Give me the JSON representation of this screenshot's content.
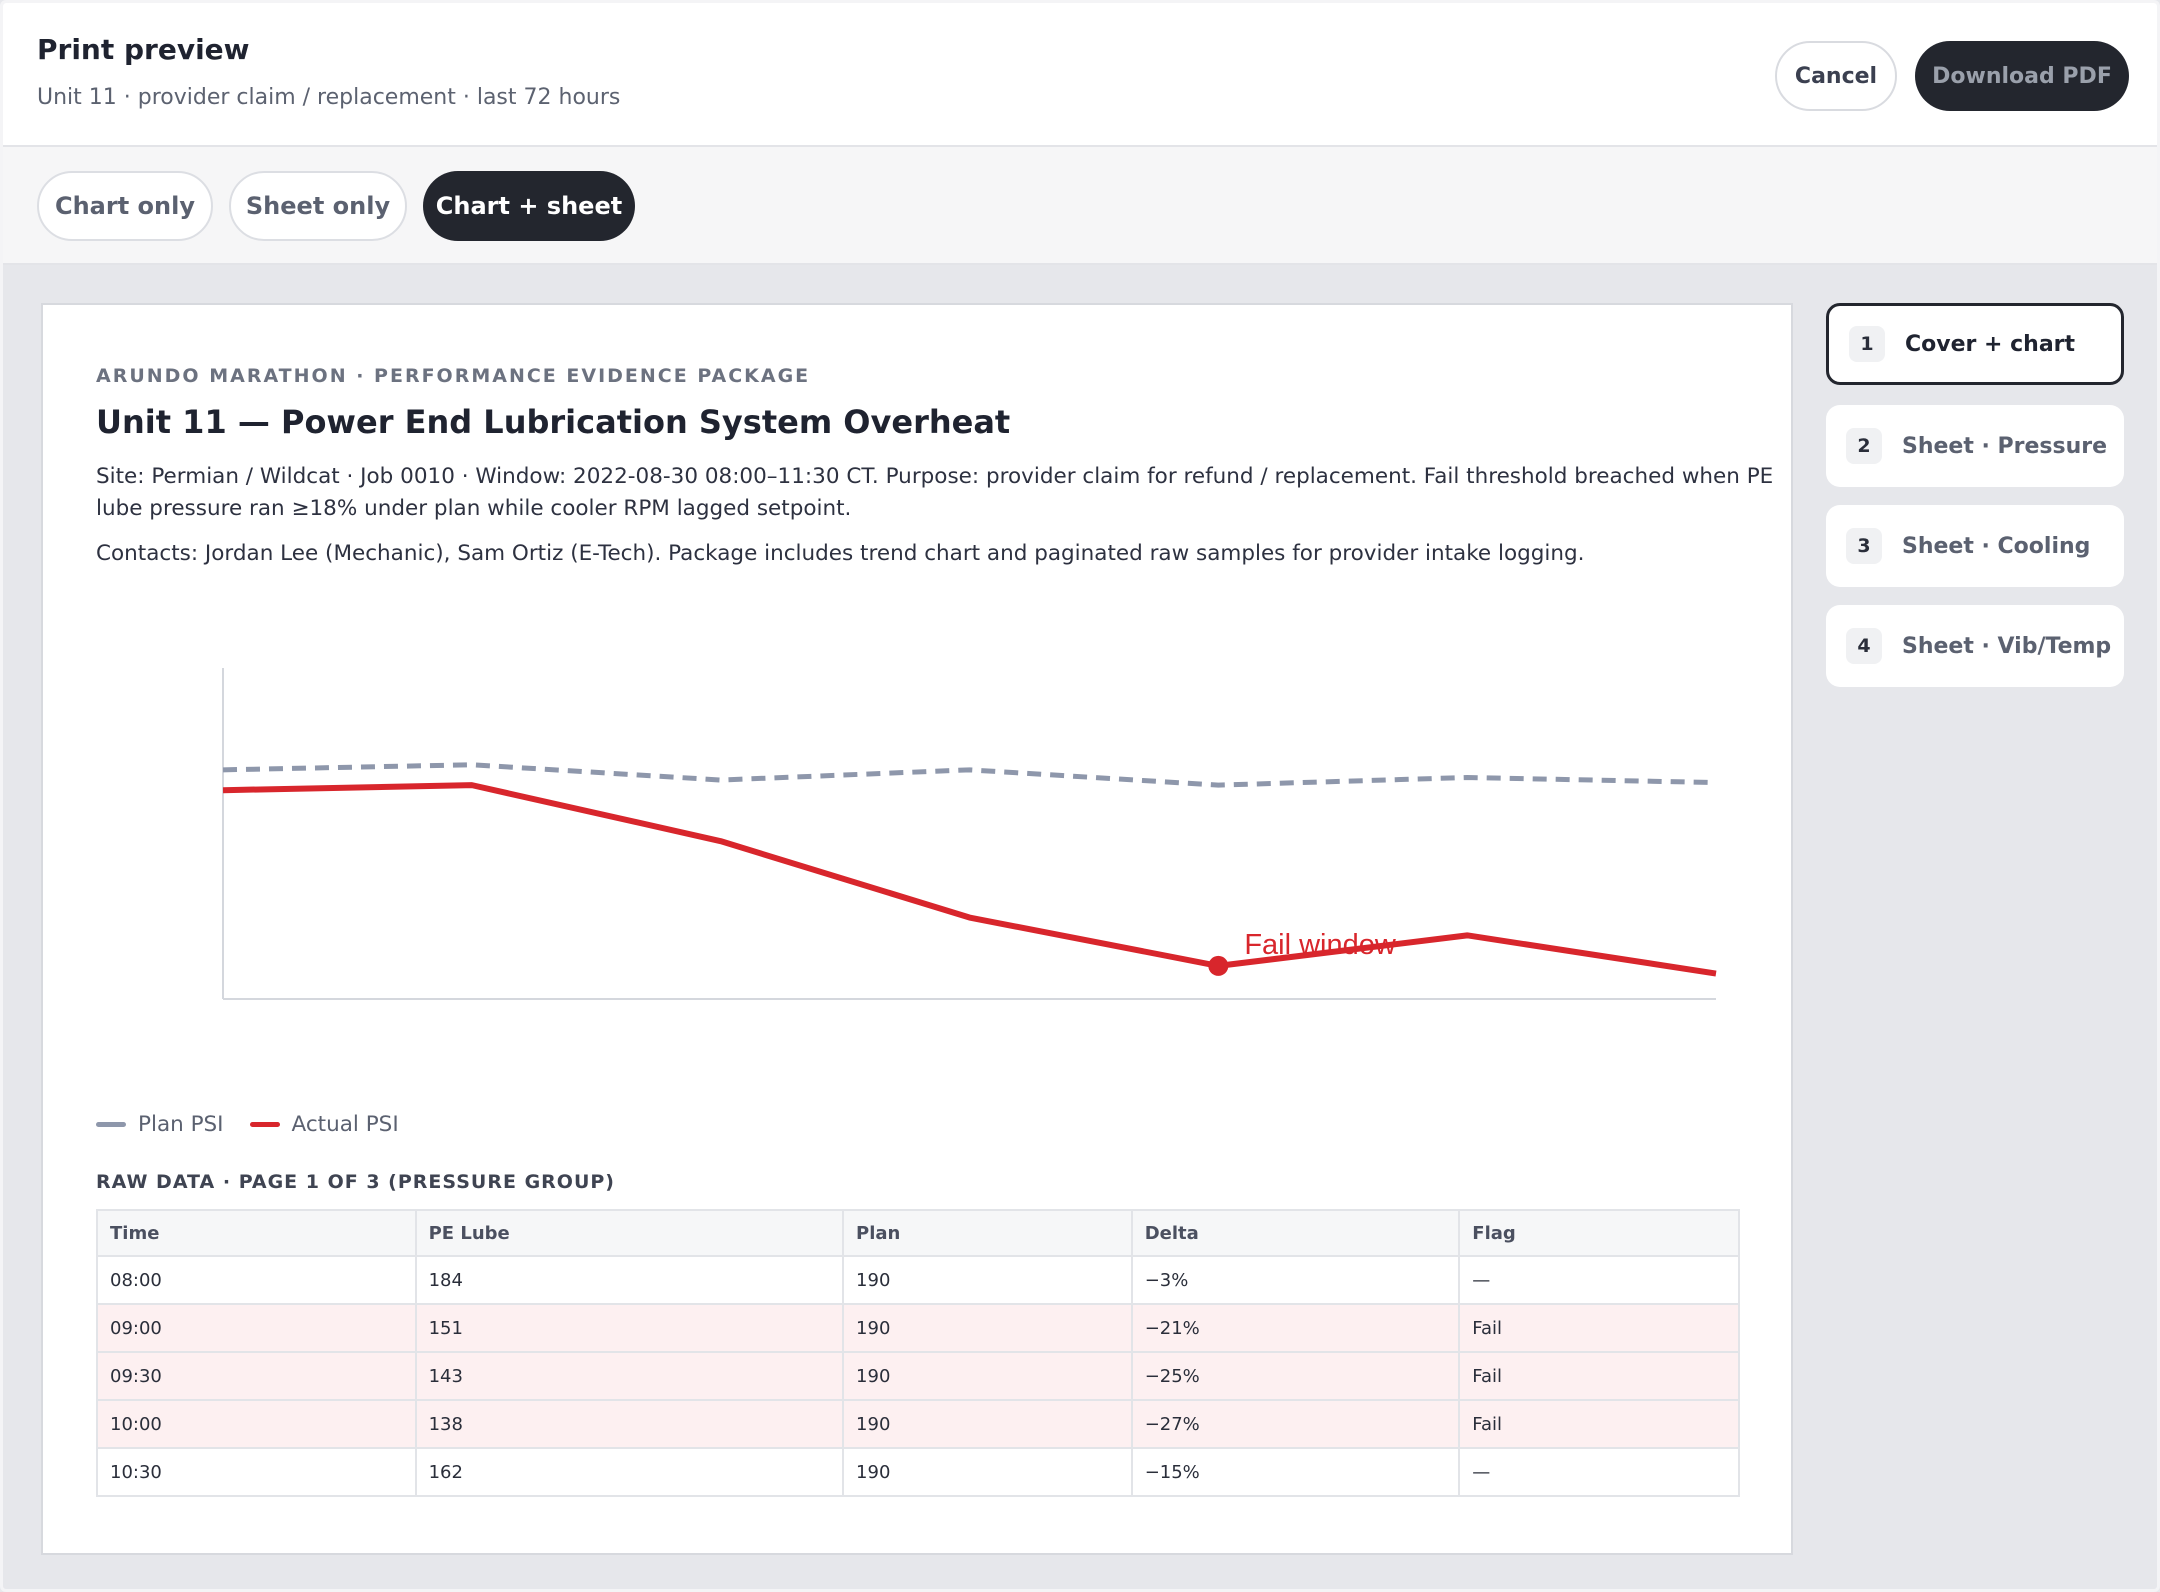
{
  "header": {
    "title": "Print preview",
    "subtitle": "Unit 11 · provider claim / replacement · last 72 hours",
    "cancel_label": "Cancel",
    "download_label": "Download PDF"
  },
  "tabs": [
    {
      "label": "Chart only",
      "active": false
    },
    {
      "label": "Sheet only",
      "active": false
    },
    {
      "label": "Chart + sheet",
      "active": true
    }
  ],
  "document": {
    "eyebrow": "ARUNDO MARATHON · PERFORMANCE EVIDENCE PACKAGE",
    "title": "Unit 11 — Power End Lubrication System Overheat",
    "description": "Site: Permian / Wildcat · Job 0010 · Window: 2022-08-30 08:00–11:30 CT. Purpose: provider claim for refund / replacement. Fail threshold breached when PE lube pressure ran ≥18% under plan while cooler RPM lagged setpoint.",
    "contacts": "Contacts: Jordan Lee (Mechanic), Sam Ortiz (E-Tech). Package includes trend chart and paginated raw samples for provider intake logging.",
    "raw_title": "RAW DATA · PAGE 1 OF 3 (PRESSURE GROUP)"
  },
  "chart_data": {
    "type": "line",
    "title": "",
    "xlabel": "",
    "ylabel": "",
    "ylim": [
      100,
      230
    ],
    "x": [
      0,
      1,
      2,
      3,
      4,
      5,
      6
    ],
    "series": [
      {
        "name": "Plan PSI",
        "color": "#8e97ab",
        "style": "dashed",
        "values": [
          190,
          192,
          186,
          190,
          184,
          187,
          185
        ]
      },
      {
        "name": "Actual PSI",
        "color": "#d8262c",
        "style": "solid",
        "values": [
          182,
          184,
          162,
          132,
          113,
          125,
          110
        ]
      }
    ],
    "annotations": [
      {
        "label": "Fail window",
        "x": 4,
        "series": "Actual PSI"
      }
    ],
    "grid": false,
    "legend": "bottom-left"
  },
  "table": {
    "columns": [
      "Time",
      "PE Lube",
      "Plan",
      "Delta",
      "Flag"
    ],
    "rows": [
      {
        "cells": [
          "08:00",
          "184",
          "190",
          "−3%",
          "—"
        ],
        "fail": false
      },
      {
        "cells": [
          "09:00",
          "151",
          "190",
          "−21%",
          "Fail"
        ],
        "fail": true
      },
      {
        "cells": [
          "09:30",
          "143",
          "190",
          "−25%",
          "Fail"
        ],
        "fail": true
      },
      {
        "cells": [
          "10:00",
          "138",
          "190",
          "−27%",
          "Fail"
        ],
        "fail": true
      },
      {
        "cells": [
          "10:30",
          "162",
          "190",
          "−15%",
          "—"
        ],
        "fail": false
      }
    ]
  },
  "sidebar": {
    "items": [
      {
        "num": "1",
        "label": "Cover + chart",
        "active": true
      },
      {
        "num": "2",
        "label": "Sheet · Pressure",
        "active": false
      },
      {
        "num": "3",
        "label": "Sheet · Cooling",
        "active": false
      },
      {
        "num": "4",
        "label": "Sheet · Vib/Temp",
        "active": false
      }
    ]
  }
}
